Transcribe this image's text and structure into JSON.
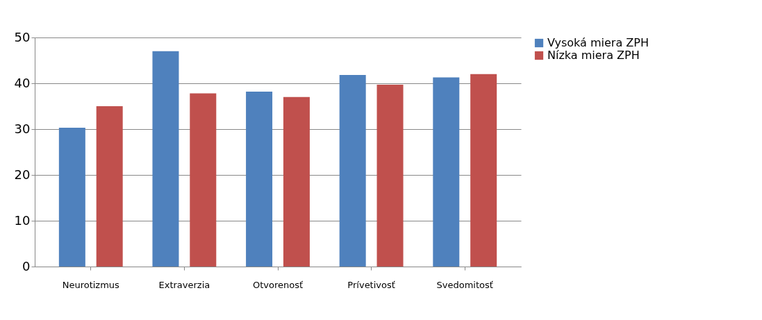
{
  "chart_data": {
    "type": "bar",
    "categories": [
      "Neurotizmus",
      "Extraverzia",
      "Otvorenosť",
      "Prívetivosť",
      "Svedomitosť"
    ],
    "series": [
      {
        "name": "Vysoká miera ZPH",
        "color": "#4f81bd",
        "values": [
          30.3,
          47,
          38.2,
          41.8,
          41.3
        ]
      },
      {
        "name": "Nízka miera ZPH",
        "color": "#c0504d",
        "values": [
          35,
          37.8,
          37,
          39.7,
          42
        ]
      }
    ],
    "ylim": [
      0,
      50
    ],
    "yticks": [
      0,
      10,
      20,
      30,
      40,
      50
    ],
    "grid": "y",
    "legend": "right"
  }
}
